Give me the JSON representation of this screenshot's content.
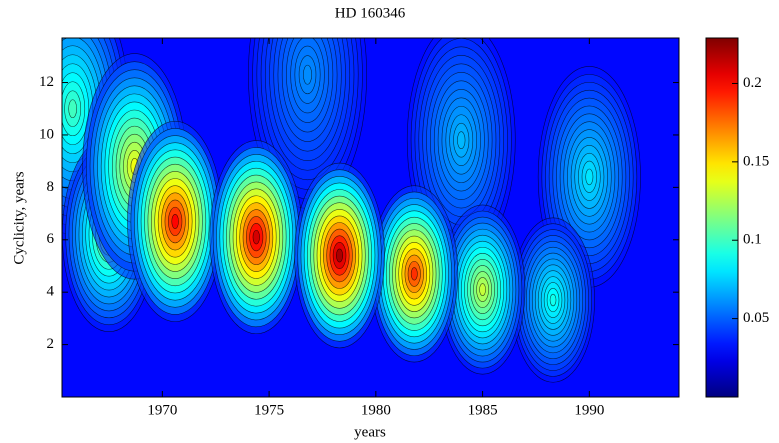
{
  "chart_data": {
    "type": "contour",
    "subtitle": "HD 160346",
    "x_label": "years",
    "y_label": "Cyclicity, years",
    "xlim": [
      1965.3,
      1994.2
    ],
    "xticks": [
      1970,
      1975,
      1980,
      1985,
      1990
    ],
    "ylim": [
      0,
      13.7
    ],
    "yticks": [
      2,
      4,
      6,
      8,
      10,
      12
    ],
    "colormap": "jet",
    "background_value": 0.03,
    "colorbar": {
      "clim": [
        0,
        0.229
      ],
      "ticks": [
        0.05,
        0.1,
        0.15,
        0.2
      ]
    },
    "peaks": [
      {
        "x": 1976.8,
        "y": 12.3,
        "value": 0.06
      },
      {
        "x": 1984.0,
        "y": 9.8,
        "value": 0.07
      },
      {
        "x": 1990.0,
        "y": 8.4,
        "value": 0.08
      },
      {
        "x": 1965.8,
        "y": 11.0,
        "value": 0.1
      },
      {
        "x": 1988.3,
        "y": 3.7,
        "value": 0.09
      },
      {
        "x": 1967.5,
        "y": 6.2,
        "value": 0.12
      },
      {
        "x": 1968.7,
        "y": 8.8,
        "value": 0.14
      },
      {
        "x": 1985.0,
        "y": 4.1,
        "value": 0.13
      },
      {
        "x": 1981.8,
        "y": 4.7,
        "value": 0.19
      },
      {
        "x": 1970.6,
        "y": 6.7,
        "value": 0.2
      },
      {
        "x": 1974.4,
        "y": 6.1,
        "value": 0.21
      },
      {
        "x": 1978.3,
        "y": 5.4,
        "value": 0.22
      }
    ]
  }
}
